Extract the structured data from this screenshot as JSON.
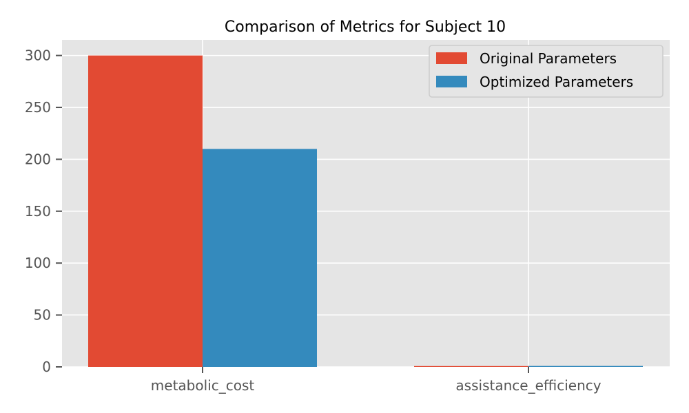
{
  "chart_data": {
    "type": "bar",
    "title": "Comparison of Metrics for Subject 10",
    "xlabel": "",
    "ylabel": "",
    "categories": [
      "metabolic_cost",
      "assistance_efficiency"
    ],
    "series": [
      {
        "name": "Original Parameters",
        "values": [
          300,
          0.8
        ],
        "color": "#E24A33"
      },
      {
        "name": "Optimized Parameters",
        "values": [
          210,
          0.9
        ],
        "color": "#348ABD"
      }
    ],
    "ylim": [
      0,
      315
    ],
    "yticks": [
      0,
      50,
      100,
      150,
      200,
      250,
      300
    ],
    "grid": true,
    "legend_position": "top-right",
    "background_color": "#E5E5E5",
    "grid_color": "#FFFFFF"
  }
}
